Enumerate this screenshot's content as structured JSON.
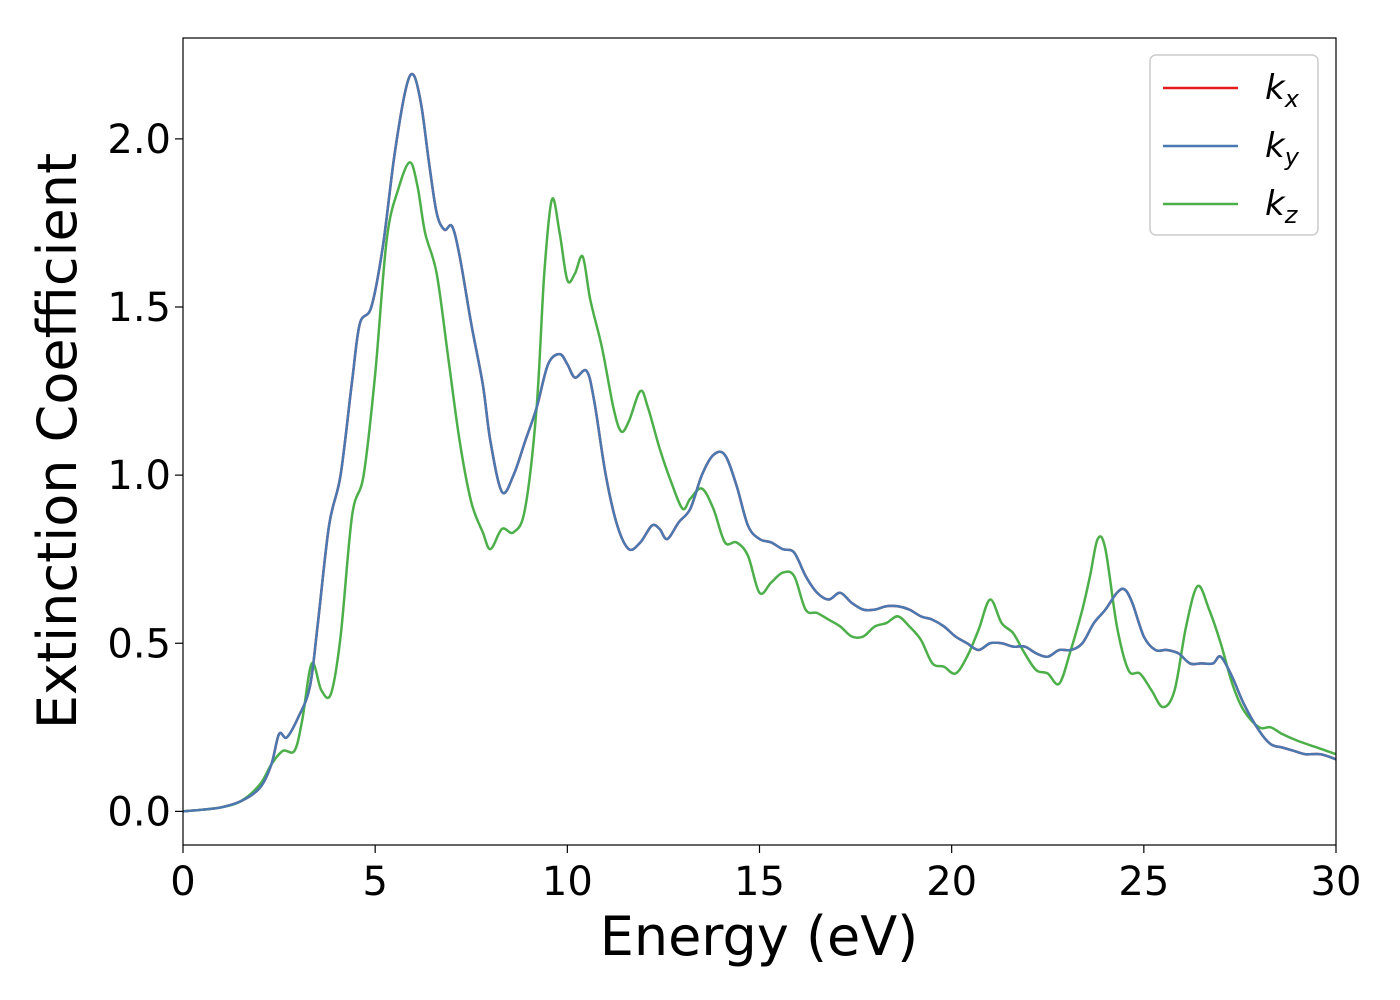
{
  "chart_data": {
    "type": "line",
    "xlabel": "Energy (eV)",
    "ylabel": "Extinction Coefficient",
    "xlim": [
      0,
      30
    ],
    "ylim": [
      -0.1,
      2.3
    ],
    "xticks": [
      0,
      5,
      10,
      15,
      20,
      25,
      30
    ],
    "xtick_labels": [
      "0",
      "5",
      "10",
      "15",
      "20",
      "25",
      "30"
    ],
    "yticks": [
      0.0,
      0.5,
      1.0,
      1.5,
      2.0
    ],
    "ytick_labels": [
      "0.0",
      "0.5",
      "1.0",
      "1.5",
      "2.0"
    ],
    "grid": false,
    "legend_position": "top-right",
    "series": [
      {
        "name": "k",
        "subscript": "x",
        "color": "#e41a1c",
        "width": 2.5,
        "points": [
          [
            0,
            0
          ],
          [
            0.5,
            0.005
          ],
          [
            1.0,
            0.012
          ],
          [
            1.5,
            0.03
          ],
          [
            2.0,
            0.07
          ],
          [
            2.3,
            0.14
          ],
          [
            2.5,
            0.23
          ],
          [
            2.7,
            0.22
          ],
          [
            3.0,
            0.28
          ],
          [
            3.3,
            0.37
          ],
          [
            3.5,
            0.55
          ],
          [
            3.8,
            0.85
          ],
          [
            4.1,
            1.0
          ],
          [
            4.4,
            1.28
          ],
          [
            4.6,
            1.45
          ],
          [
            4.9,
            1.5
          ],
          [
            5.2,
            1.68
          ],
          [
            5.5,
            1.95
          ],
          [
            5.8,
            2.15
          ],
          [
            6.0,
            2.19
          ],
          [
            6.2,
            2.1
          ],
          [
            6.4,
            1.93
          ],
          [
            6.6,
            1.78
          ],
          [
            6.8,
            1.73
          ],
          [
            7.0,
            1.74
          ],
          [
            7.2,
            1.65
          ],
          [
            7.5,
            1.45
          ],
          [
            7.8,
            1.27
          ],
          [
            8.0,
            1.1
          ],
          [
            8.3,
            0.95
          ],
          [
            8.6,
            1.0
          ],
          [
            8.9,
            1.1
          ],
          [
            9.2,
            1.2
          ],
          [
            9.5,
            1.33
          ],
          [
            9.8,
            1.36
          ],
          [
            10.0,
            1.33
          ],
          [
            10.2,
            1.29
          ],
          [
            10.5,
            1.31
          ],
          [
            10.7,
            1.22
          ],
          [
            11.0,
            1.0
          ],
          [
            11.3,
            0.85
          ],
          [
            11.6,
            0.78
          ],
          [
            11.9,
            0.8
          ],
          [
            12.2,
            0.85
          ],
          [
            12.4,
            0.84
          ],
          [
            12.6,
            0.81
          ],
          [
            12.9,
            0.86
          ],
          [
            13.2,
            0.9
          ],
          [
            13.5,
            1.0
          ],
          [
            13.8,
            1.06
          ],
          [
            14.1,
            1.06
          ],
          [
            14.4,
            0.97
          ],
          [
            14.7,
            0.85
          ],
          [
            15.0,
            0.81
          ],
          [
            15.3,
            0.8
          ],
          [
            15.6,
            0.78
          ],
          [
            15.9,
            0.77
          ],
          [
            16.2,
            0.7
          ],
          [
            16.5,
            0.65
          ],
          [
            16.8,
            0.63
          ],
          [
            17.1,
            0.65
          ],
          [
            17.4,
            0.62
          ],
          [
            17.7,
            0.6
          ],
          [
            18.0,
            0.6
          ],
          [
            18.3,
            0.61
          ],
          [
            18.6,
            0.61
          ],
          [
            18.9,
            0.6
          ],
          [
            19.2,
            0.58
          ],
          [
            19.5,
            0.57
          ],
          [
            19.8,
            0.55
          ],
          [
            20.1,
            0.52
          ],
          [
            20.4,
            0.5
          ],
          [
            20.7,
            0.48
          ],
          [
            21.0,
            0.5
          ],
          [
            21.3,
            0.5
          ],
          [
            21.6,
            0.49
          ],
          [
            21.9,
            0.49
          ],
          [
            22.2,
            0.47
          ],
          [
            22.5,
            0.46
          ],
          [
            22.8,
            0.48
          ],
          [
            23.1,
            0.48
          ],
          [
            23.4,
            0.5
          ],
          [
            23.7,
            0.56
          ],
          [
            24.0,
            0.6
          ],
          [
            24.3,
            0.65
          ],
          [
            24.5,
            0.66
          ],
          [
            24.7,
            0.62
          ],
          [
            25.0,
            0.52
          ],
          [
            25.3,
            0.48
          ],
          [
            25.6,
            0.48
          ],
          [
            25.9,
            0.47
          ],
          [
            26.2,
            0.44
          ],
          [
            26.5,
            0.44
          ],
          [
            26.8,
            0.44
          ],
          [
            27.0,
            0.46
          ],
          [
            27.3,
            0.4
          ],
          [
            27.6,
            0.32
          ],
          [
            28.0,
            0.24
          ],
          [
            28.3,
            0.2
          ],
          [
            28.6,
            0.19
          ],
          [
            28.9,
            0.18
          ],
          [
            29.2,
            0.17
          ],
          [
            29.6,
            0.17
          ],
          [
            30.0,
            0.155
          ]
        ]
      },
      {
        "name": "k",
        "subscript": "y",
        "color": "#4a78b0",
        "width": 2.5,
        "points": [
          [
            0,
            0
          ],
          [
            0.5,
            0.005
          ],
          [
            1.0,
            0.012
          ],
          [
            1.5,
            0.03
          ],
          [
            2.0,
            0.07
          ],
          [
            2.3,
            0.14
          ],
          [
            2.5,
            0.23
          ],
          [
            2.7,
            0.22
          ],
          [
            3.0,
            0.28
          ],
          [
            3.3,
            0.37
          ],
          [
            3.5,
            0.55
          ],
          [
            3.8,
            0.85
          ],
          [
            4.1,
            1.0
          ],
          [
            4.4,
            1.28
          ],
          [
            4.6,
            1.45
          ],
          [
            4.9,
            1.5
          ],
          [
            5.2,
            1.68
          ],
          [
            5.5,
            1.95
          ],
          [
            5.8,
            2.15
          ],
          [
            6.0,
            2.19
          ],
          [
            6.2,
            2.1
          ],
          [
            6.4,
            1.93
          ],
          [
            6.6,
            1.78
          ],
          [
            6.8,
            1.73
          ],
          [
            7.0,
            1.74
          ],
          [
            7.2,
            1.65
          ],
          [
            7.5,
            1.45
          ],
          [
            7.8,
            1.27
          ],
          [
            8.0,
            1.1
          ],
          [
            8.3,
            0.95
          ],
          [
            8.6,
            1.0
          ],
          [
            8.9,
            1.1
          ],
          [
            9.2,
            1.2
          ],
          [
            9.5,
            1.33
          ],
          [
            9.8,
            1.36
          ],
          [
            10.0,
            1.33
          ],
          [
            10.2,
            1.29
          ],
          [
            10.5,
            1.31
          ],
          [
            10.7,
            1.22
          ],
          [
            11.0,
            1.0
          ],
          [
            11.3,
            0.85
          ],
          [
            11.6,
            0.78
          ],
          [
            11.9,
            0.8
          ],
          [
            12.2,
            0.85
          ],
          [
            12.4,
            0.84
          ],
          [
            12.6,
            0.81
          ],
          [
            12.9,
            0.86
          ],
          [
            13.2,
            0.9
          ],
          [
            13.5,
            1.0
          ],
          [
            13.8,
            1.06
          ],
          [
            14.1,
            1.06
          ],
          [
            14.4,
            0.97
          ],
          [
            14.7,
            0.85
          ],
          [
            15.0,
            0.81
          ],
          [
            15.3,
            0.8
          ],
          [
            15.6,
            0.78
          ],
          [
            15.9,
            0.77
          ],
          [
            16.2,
            0.7
          ],
          [
            16.5,
            0.65
          ],
          [
            16.8,
            0.63
          ],
          [
            17.1,
            0.65
          ],
          [
            17.4,
            0.62
          ],
          [
            17.7,
            0.6
          ],
          [
            18.0,
            0.6
          ],
          [
            18.3,
            0.61
          ],
          [
            18.6,
            0.61
          ],
          [
            18.9,
            0.6
          ],
          [
            19.2,
            0.58
          ],
          [
            19.5,
            0.57
          ],
          [
            19.8,
            0.55
          ],
          [
            20.1,
            0.52
          ],
          [
            20.4,
            0.5
          ],
          [
            20.7,
            0.48
          ],
          [
            21.0,
            0.5
          ],
          [
            21.3,
            0.5
          ],
          [
            21.6,
            0.49
          ],
          [
            21.9,
            0.49
          ],
          [
            22.2,
            0.47
          ],
          [
            22.5,
            0.46
          ],
          [
            22.8,
            0.48
          ],
          [
            23.1,
            0.48
          ],
          [
            23.4,
            0.5
          ],
          [
            23.7,
            0.56
          ],
          [
            24.0,
            0.6
          ],
          [
            24.3,
            0.65
          ],
          [
            24.5,
            0.66
          ],
          [
            24.7,
            0.62
          ],
          [
            25.0,
            0.52
          ],
          [
            25.3,
            0.48
          ],
          [
            25.6,
            0.48
          ],
          [
            25.9,
            0.47
          ],
          [
            26.2,
            0.44
          ],
          [
            26.5,
            0.44
          ],
          [
            26.8,
            0.44
          ],
          [
            27.0,
            0.46
          ],
          [
            27.3,
            0.4
          ],
          [
            27.6,
            0.32
          ],
          [
            28.0,
            0.24
          ],
          [
            28.3,
            0.2
          ],
          [
            28.6,
            0.19
          ],
          [
            28.9,
            0.18
          ],
          [
            29.2,
            0.17
          ],
          [
            29.6,
            0.17
          ],
          [
            30.0,
            0.155
          ]
        ]
      },
      {
        "name": "k",
        "subscript": "z",
        "color": "#4daf4a",
        "width": 2.5,
        "points": [
          [
            0,
            0
          ],
          [
            0.5,
            0.005
          ],
          [
            1.0,
            0.012
          ],
          [
            1.5,
            0.03
          ],
          [
            2.0,
            0.08
          ],
          [
            2.3,
            0.14
          ],
          [
            2.6,
            0.18
          ],
          [
            2.9,
            0.18
          ],
          [
            3.1,
            0.27
          ],
          [
            3.35,
            0.44
          ],
          [
            3.6,
            0.36
          ],
          [
            3.85,
            0.35
          ],
          [
            4.1,
            0.52
          ],
          [
            4.4,
            0.88
          ],
          [
            4.7,
            1.0
          ],
          [
            5.0,
            1.3
          ],
          [
            5.3,
            1.7
          ],
          [
            5.6,
            1.85
          ],
          [
            5.9,
            1.93
          ],
          [
            6.1,
            1.86
          ],
          [
            6.3,
            1.72
          ],
          [
            6.6,
            1.6
          ],
          [
            6.9,
            1.35
          ],
          [
            7.2,
            1.1
          ],
          [
            7.5,
            0.92
          ],
          [
            7.8,
            0.83
          ],
          [
            8.0,
            0.78
          ],
          [
            8.3,
            0.84
          ],
          [
            8.6,
            0.83
          ],
          [
            8.9,
            0.9
          ],
          [
            9.2,
            1.2
          ],
          [
            9.4,
            1.6
          ],
          [
            9.6,
            1.82
          ],
          [
            9.8,
            1.72
          ],
          [
            10.0,
            1.58
          ],
          [
            10.2,
            1.6
          ],
          [
            10.4,
            1.65
          ],
          [
            10.6,
            1.52
          ],
          [
            10.9,
            1.38
          ],
          [
            11.2,
            1.2
          ],
          [
            11.4,
            1.13
          ],
          [
            11.6,
            1.16
          ],
          [
            11.9,
            1.25
          ],
          [
            12.1,
            1.2
          ],
          [
            12.4,
            1.08
          ],
          [
            12.7,
            0.98
          ],
          [
            13.0,
            0.9
          ],
          [
            13.2,
            0.93
          ],
          [
            13.5,
            0.96
          ],
          [
            13.8,
            0.9
          ],
          [
            14.1,
            0.8
          ],
          [
            14.4,
            0.8
          ],
          [
            14.7,
            0.76
          ],
          [
            15.0,
            0.65
          ],
          [
            15.3,
            0.68
          ],
          [
            15.6,
            0.71
          ],
          [
            15.9,
            0.7
          ],
          [
            16.2,
            0.6
          ],
          [
            16.5,
            0.59
          ],
          [
            16.8,
            0.57
          ],
          [
            17.1,
            0.55
          ],
          [
            17.4,
            0.52
          ],
          [
            17.7,
            0.52
          ],
          [
            18.0,
            0.55
          ],
          [
            18.3,
            0.56
          ],
          [
            18.6,
            0.58
          ],
          [
            18.9,
            0.55
          ],
          [
            19.2,
            0.51
          ],
          [
            19.5,
            0.44
          ],
          [
            19.8,
            0.43
          ],
          [
            20.1,
            0.41
          ],
          [
            20.4,
            0.46
          ],
          [
            20.7,
            0.54
          ],
          [
            21.0,
            0.63
          ],
          [
            21.3,
            0.56
          ],
          [
            21.6,
            0.53
          ],
          [
            21.9,
            0.47
          ],
          [
            22.2,
            0.42
          ],
          [
            22.5,
            0.41
          ],
          [
            22.8,
            0.38
          ],
          [
            23.1,
            0.48
          ],
          [
            23.4,
            0.6
          ],
          [
            23.6,
            0.7
          ],
          [
            23.8,
            0.81
          ],
          [
            24.0,
            0.78
          ],
          [
            24.3,
            0.55
          ],
          [
            24.6,
            0.42
          ],
          [
            24.9,
            0.41
          ],
          [
            25.2,
            0.36
          ],
          [
            25.5,
            0.31
          ],
          [
            25.8,
            0.36
          ],
          [
            26.1,
            0.55
          ],
          [
            26.4,
            0.67
          ],
          [
            26.7,
            0.6
          ],
          [
            27.0,
            0.5
          ],
          [
            27.3,
            0.38
          ],
          [
            27.6,
            0.3
          ],
          [
            28.0,
            0.25
          ],
          [
            28.3,
            0.25
          ],
          [
            28.6,
            0.23
          ],
          [
            29.0,
            0.21
          ],
          [
            29.5,
            0.19
          ],
          [
            30.0,
            0.17
          ]
        ]
      }
    ]
  }
}
